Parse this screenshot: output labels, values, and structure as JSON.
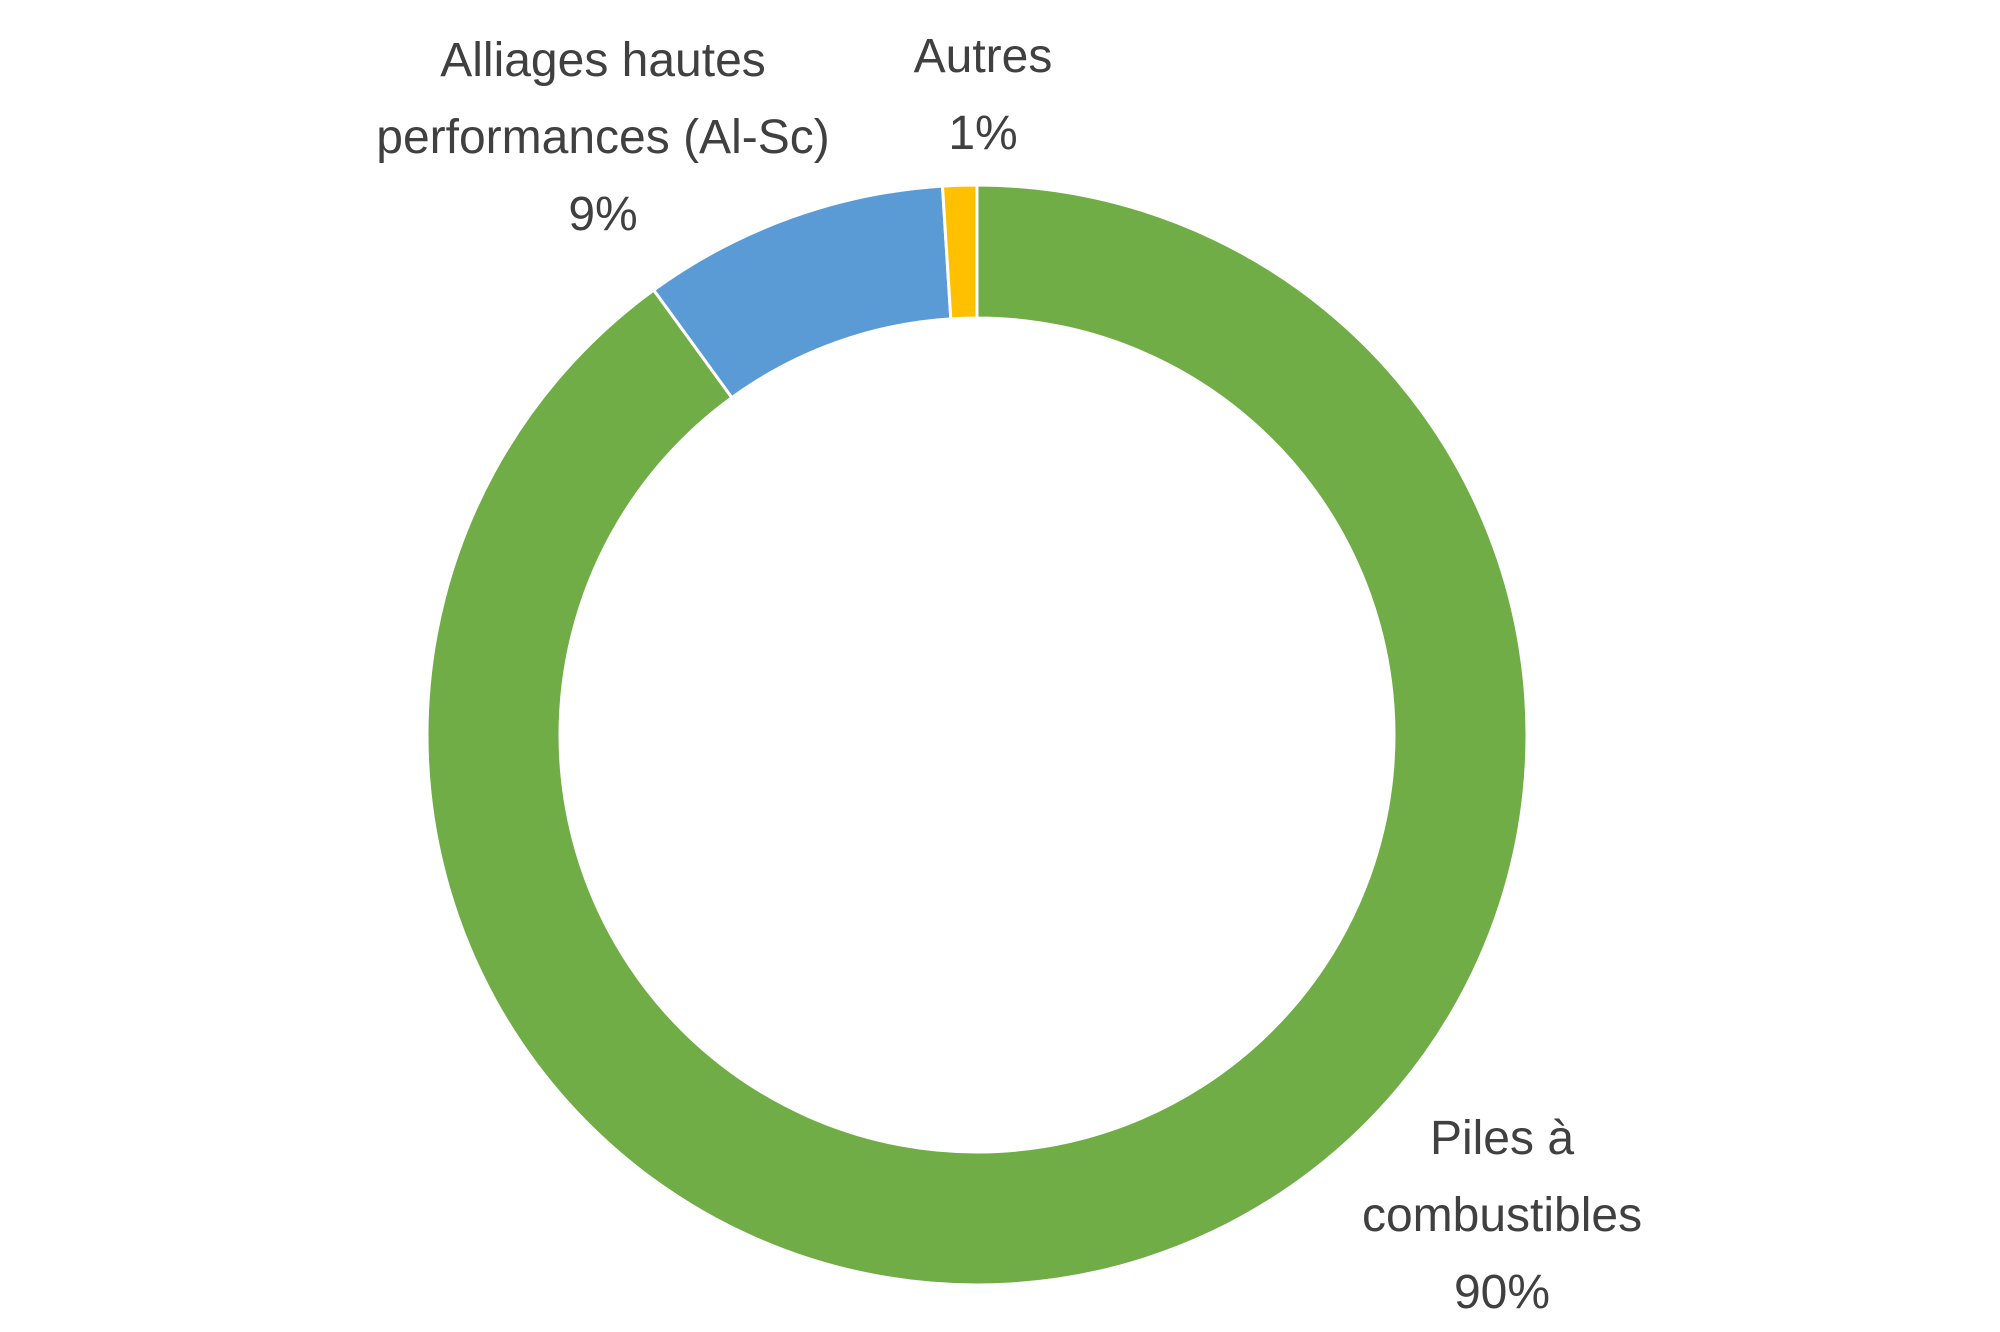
{
  "chart_data": {
    "type": "donut",
    "categories": [
      "Piles à combustibles",
      "Alliages hautes performances (Al-Sc)",
      "Autres"
    ],
    "values": [
      90,
      9,
      1
    ],
    "value_labels": [
      "90%",
      "9%",
      "1%"
    ],
    "colors": [
      "#70ad47",
      "#5b9bd5",
      "#ffc000"
    ]
  }
}
